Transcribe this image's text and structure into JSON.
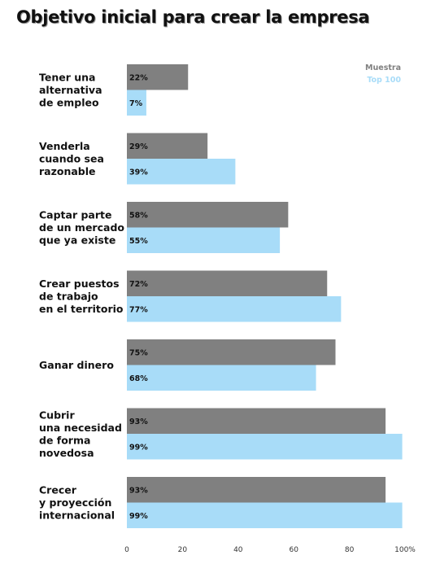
{
  "chart_data": {
    "type": "bar",
    "orientation": "horizontal",
    "title": "Objetivo inicial para crear la empresa",
    "xlabel": "",
    "ylabel": "",
    "xlim": [
      0,
      100
    ],
    "ticks": [
      {
        "value": 0,
        "label": "0"
      },
      {
        "value": 20,
        "label": "20"
      },
      {
        "value": 40,
        "label": "40"
      },
      {
        "value": 60,
        "label": "60"
      },
      {
        "value": 80,
        "label": "80"
      },
      {
        "value": 100,
        "label": "100%"
      }
    ],
    "grid": false,
    "legend_position": "top-right",
    "categories": [
      [
        "Tener una",
        "alternativa",
        "de empleo"
      ],
      [
        "Venderla",
        "cuando sea",
        "razonable"
      ],
      [
        "Captar parte",
        "de un mercado",
        "que ya existe"
      ],
      [
        "Crear puestos",
        "de trabajo",
        "en el territorio"
      ],
      [
        "Ganar dinero"
      ],
      [
        "Cubrir",
        "una necesidad",
        "de forma",
        "novedosa"
      ],
      [
        "Crecer",
        "y proyección",
        "internacional"
      ]
    ],
    "series": [
      {
        "name": "Muestra",
        "color": "#808080",
        "values": [
          22,
          29,
          58,
          72,
          75,
          93,
          93
        ],
        "labels": [
          "22%",
          "29%",
          "58%",
          "72%",
          "75%",
          "93%",
          "93%"
        ]
      },
      {
        "name": "Top 100",
        "color": "#a8dcf8",
        "values": [
          7,
          39,
          55,
          77,
          68,
          99,
          99
        ],
        "labels": [
          "7%",
          "39%",
          "55%",
          "77%",
          "68%",
          "99%",
          "99%"
        ]
      }
    ]
  }
}
